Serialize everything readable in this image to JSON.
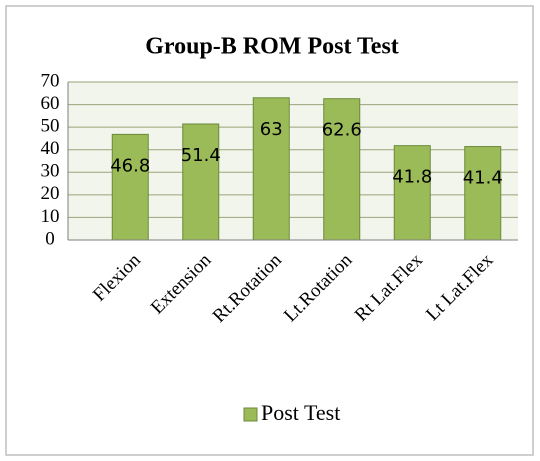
{
  "chart_data": {
    "type": "bar",
    "title": "Group-B ROM Post Test",
    "categories": [
      "Flexion",
      "Extension",
      "Rt.Rotation",
      "Lt.Rotation",
      "Rt Lat.Flex",
      "Lt Lat.Flex"
    ],
    "series": [
      {
        "name": "Post Test",
        "color": "#9bbb59",
        "values": [
          46.8,
          51.4,
          63,
          62.6,
          41.8,
          41.4
        ]
      }
    ],
    "ylim": [
      0,
      70
    ],
    "yticks": [
      0,
      10,
      20,
      30,
      40,
      50,
      60,
      70
    ],
    "grid": true,
    "legend": "bottom"
  }
}
